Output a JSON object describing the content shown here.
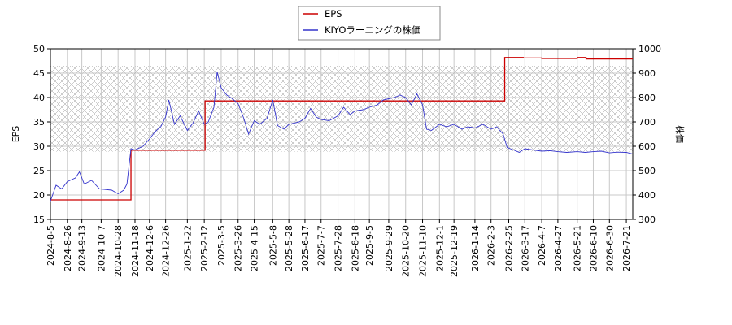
{
  "chart_data": {
    "type": "line",
    "title": "",
    "ylabel_left": "EPS",
    "ylabel_right": "株価",
    "ylim_left": [
      15,
      50
    ],
    "ylim_right": [
      300,
      1000
    ],
    "left_ticks": [
      15,
      20,
      25,
      30,
      35,
      40,
      45,
      50
    ],
    "right_ticks": [
      300,
      400,
      500,
      600,
      700,
      800,
      900,
      1000
    ],
    "x_range": [
      "2024-08-05",
      "2026-07-29"
    ],
    "x_tick_labels": [
      "2024-8-5",
      "2024-8-26",
      "2024-9-13",
      "2024-10-7",
      "2024-10-28",
      "2024-11-18",
      "2024-12-6",
      "2024-12-26",
      "2025-1-22",
      "2025-2-12",
      "2025-3-5",
      "2025-3-26",
      "2025-4-15",
      "2025-5-8",
      "2025-5-28",
      "2025-6-17",
      "2025-7-7",
      "2025-7-28",
      "2025-8-18",
      "2025-9-5",
      "2025-9-29",
      "2025-10-20",
      "2025-11-10",
      "2025-12-1",
      "2025-12-19",
      "2026-1-14",
      "2026-2-3",
      "2026-2-25",
      "2026-3-17",
      "2026-4-7",
      "2026-4-27",
      "2026-5-21",
      "2026-6-10",
      "2026-6-30",
      "2026-7-21"
    ],
    "hatched_band_right_axis": [
      578,
      930
    ],
    "grid": true,
    "legend_position": "top-center",
    "series": [
      {
        "name": "EPS",
        "axis": "left",
        "color": "#cc0000",
        "step": true,
        "points": [
          [
            "2024-08-05",
            19.0
          ],
          [
            "2024-11-12",
            19.0
          ],
          [
            "2024-11-13",
            29.2
          ],
          [
            "2025-02-12",
            29.2
          ],
          [
            "2025-02-13",
            39.3
          ],
          [
            "2026-02-19",
            39.3
          ],
          [
            "2026-02-20",
            48.2
          ],
          [
            "2026-03-15",
            48.1
          ],
          [
            "2026-04-07",
            48.0
          ],
          [
            "2026-05-21",
            48.2
          ],
          [
            "2026-06-01",
            47.9
          ],
          [
            "2026-07-29",
            47.9
          ]
        ]
      },
      {
        "name": "KIYOラーニングの株価",
        "axis": "right",
        "color": "#3333cc",
        "points": [
          [
            "2024-08-05",
            375
          ],
          [
            "2024-08-12",
            440
          ],
          [
            "2024-08-19",
            425
          ],
          [
            "2024-08-26",
            455
          ],
          [
            "2024-09-05",
            470
          ],
          [
            "2024-09-10",
            495
          ],
          [
            "2024-09-16",
            445
          ],
          [
            "2024-09-25",
            460
          ],
          [
            "2024-10-05",
            425
          ],
          [
            "2024-10-20",
            420
          ],
          [
            "2024-10-28",
            405
          ],
          [
            "2024-11-04",
            420
          ],
          [
            "2024-11-08",
            445
          ],
          [
            "2024-11-13",
            590
          ],
          [
            "2024-11-18",
            585
          ],
          [
            "2024-11-28",
            600
          ],
          [
            "2024-12-06",
            630
          ],
          [
            "2024-12-13",
            660
          ],
          [
            "2024-12-20",
            680
          ],
          [
            "2024-12-26",
            720
          ],
          [
            "2024-12-30",
            790
          ],
          [
            "2025-01-06",
            690
          ],
          [
            "2025-01-13",
            725
          ],
          [
            "2025-01-22",
            665
          ],
          [
            "2025-01-29",
            695
          ],
          [
            "2025-02-05",
            745
          ],
          [
            "2025-02-12",
            690
          ],
          [
            "2025-02-17",
            700
          ],
          [
            "2025-02-24",
            760
          ],
          [
            "2025-02-28",
            905
          ],
          [
            "2025-03-05",
            840
          ],
          [
            "2025-03-12",
            810
          ],
          [
            "2025-03-19",
            795
          ],
          [
            "2025-03-26",
            775
          ],
          [
            "2025-04-02",
            715
          ],
          [
            "2025-04-08",
            650
          ],
          [
            "2025-04-15",
            705
          ],
          [
            "2025-04-22",
            690
          ],
          [
            "2025-05-01",
            715
          ],
          [
            "2025-05-08",
            790
          ],
          [
            "2025-05-14",
            685
          ],
          [
            "2025-05-22",
            670
          ],
          [
            "2025-05-28",
            690
          ],
          [
            "2025-06-10",
            700
          ],
          [
            "2025-06-17",
            715
          ],
          [
            "2025-06-24",
            755
          ],
          [
            "2025-07-01",
            720
          ],
          [
            "2025-07-07",
            710
          ],
          [
            "2025-07-17",
            705
          ],
          [
            "2025-07-28",
            725
          ],
          [
            "2025-08-04",
            760
          ],
          [
            "2025-08-12",
            730
          ],
          [
            "2025-08-18",
            745
          ],
          [
            "2025-08-28",
            750
          ],
          [
            "2025-09-05",
            760
          ],
          [
            "2025-09-15",
            770
          ],
          [
            "2025-09-22",
            790
          ],
          [
            "2025-09-29",
            795
          ],
          [
            "2025-10-06",
            800
          ],
          [
            "2025-10-13",
            810
          ],
          [
            "2025-10-20",
            800
          ],
          [
            "2025-10-27",
            770
          ],
          [
            "2025-11-03",
            815
          ],
          [
            "2025-11-10",
            770
          ],
          [
            "2025-11-15",
            670
          ],
          [
            "2025-11-21",
            665
          ],
          [
            "2025-12-01",
            690
          ],
          [
            "2025-12-10",
            680
          ],
          [
            "2025-12-19",
            690
          ],
          [
            "2025-12-29",
            670
          ],
          [
            "2026-01-05",
            680
          ],
          [
            "2026-01-14",
            675
          ],
          [
            "2026-01-24",
            690
          ],
          [
            "2026-02-03",
            670
          ],
          [
            "2026-02-10",
            680
          ],
          [
            "2026-02-18",
            650
          ],
          [
            "2026-02-23",
            595
          ],
          [
            "2026-03-03",
            585
          ],
          [
            "2026-03-10",
            575
          ],
          [
            "2026-03-17",
            590
          ],
          [
            "2026-03-27",
            585
          ],
          [
            "2026-04-07",
            580
          ],
          [
            "2026-04-17",
            582
          ],
          [
            "2026-04-27",
            578
          ],
          [
            "2026-05-08",
            575
          ],
          [
            "2026-05-21",
            578
          ],
          [
            "2026-05-31",
            575
          ],
          [
            "2026-06-10",
            578
          ],
          [
            "2026-06-20",
            580
          ],
          [
            "2026-06-30",
            573
          ],
          [
            "2026-07-10",
            576
          ],
          [
            "2026-07-21",
            575
          ],
          [
            "2026-07-29",
            568
          ]
        ]
      }
    ]
  }
}
